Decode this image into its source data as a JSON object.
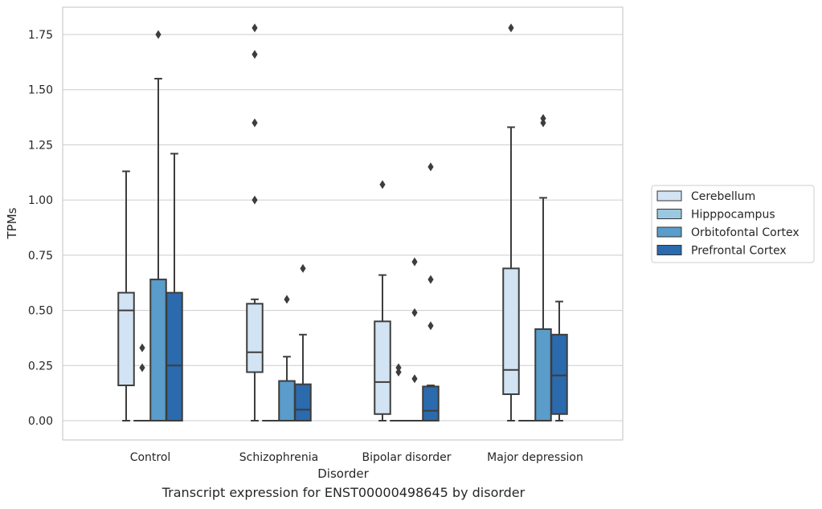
{
  "chart_data": {
    "type": "box",
    "xlabel": "Disorder",
    "ylabel": "TPMs",
    "ylim": [
      -0.09,
      1.87
    ],
    "yticks": [
      "0.00",
      "0.25",
      "0.50",
      "0.75",
      "1.00",
      "1.25",
      "1.50",
      "1.75"
    ],
    "grid": "horizontal",
    "legend_position": "right",
    "categories": [
      "Control",
      "Schizophrenia",
      "Bipolar disorder",
      "Major depression"
    ],
    "series": [
      {
        "name": "Cerebellum",
        "color": "#d2e3f3",
        "boxes": [
          {
            "q1": 0.16,
            "median": 0.5,
            "q3": 0.58,
            "whisker_low": 0.0,
            "whisker_high": 1.13,
            "outliers": []
          },
          {
            "q1": 0.22,
            "median": 0.31,
            "q3": 0.53,
            "whisker_low": 0.0,
            "whisker_high": 0.55,
            "outliers": [
              1.0,
              1.35,
              1.66,
              1.78
            ]
          },
          {
            "q1": 0.03,
            "median": 0.175,
            "q3": 0.45,
            "whisker_low": 0.0,
            "whisker_high": 0.66,
            "outliers": [
              1.07
            ]
          },
          {
            "q1": 0.12,
            "median": 0.23,
            "q3": 0.69,
            "whisker_low": 0.0,
            "whisker_high": 1.33,
            "outliers": [
              1.78
            ]
          }
        ]
      },
      {
        "name": "Hipppocampus",
        "color": "#9ac8e0",
        "boxes": [
          {
            "q1": 0.0,
            "median": 0.0,
            "q3": 0.0,
            "whisker_low": 0.0,
            "whisker_high": 0.0,
            "outliers": [
              0.24,
              0.33
            ]
          },
          {
            "q1": 0.0,
            "median": 0.0,
            "q3": 0.0,
            "whisker_low": 0.0,
            "whisker_high": 0.0,
            "outliers": []
          },
          {
            "q1": 0.0,
            "median": 0.0,
            "q3": 0.0,
            "whisker_low": 0.0,
            "whisker_high": 0.0,
            "outliers": [
              0.22,
              0.24
            ]
          },
          {
            "q1": 0.0,
            "median": 0.0,
            "q3": 0.0,
            "whisker_low": 0.0,
            "whisker_high": 0.0,
            "outliers": []
          }
        ]
      },
      {
        "name": "Orbitofontal Cortex",
        "color": "#5a9cca",
        "boxes": [
          {
            "q1": 0.0,
            "median": 0.0,
            "q3": 0.64,
            "whisker_low": 0.0,
            "whisker_high": 1.55,
            "outliers": [
              1.75
            ]
          },
          {
            "q1": 0.0,
            "median": 0.0,
            "q3": 0.18,
            "whisker_low": 0.0,
            "whisker_high": 0.29,
            "outliers": [
              0.55
            ]
          },
          {
            "q1": 0.0,
            "median": 0.0,
            "q3": 0.0,
            "whisker_low": 0.0,
            "whisker_high": 0.0,
            "outliers": [
              0.19,
              0.49,
              0.72
            ]
          },
          {
            "q1": 0.0,
            "median": 0.0,
            "q3": 0.415,
            "whisker_low": 0.0,
            "whisker_high": 1.01,
            "outliers": [
              1.35,
              1.37
            ]
          }
        ]
      },
      {
        "name": "Prefrontal Cortex",
        "color": "#2b6aac",
        "boxes": [
          {
            "q1": 0.0,
            "median": 0.25,
            "q3": 0.58,
            "whisker_low": 0.0,
            "whisker_high": 1.21,
            "outliers": []
          },
          {
            "q1": 0.0,
            "median": 0.05,
            "q3": 0.165,
            "whisker_low": 0.0,
            "whisker_high": 0.39,
            "outliers": [
              0.69
            ]
          },
          {
            "q1": 0.0,
            "median": 0.045,
            "q3": 0.155,
            "whisker_low": 0.0,
            "whisker_high": 0.16,
            "outliers": [
              0.43,
              0.64,
              1.15
            ]
          },
          {
            "q1": 0.03,
            "median": 0.205,
            "q3": 0.39,
            "whisker_low": 0.0,
            "whisker_high": 0.54,
            "outliers": []
          }
        ]
      }
    ]
  },
  "caption": "Transcript expression for ENST00000498645 by disorder"
}
